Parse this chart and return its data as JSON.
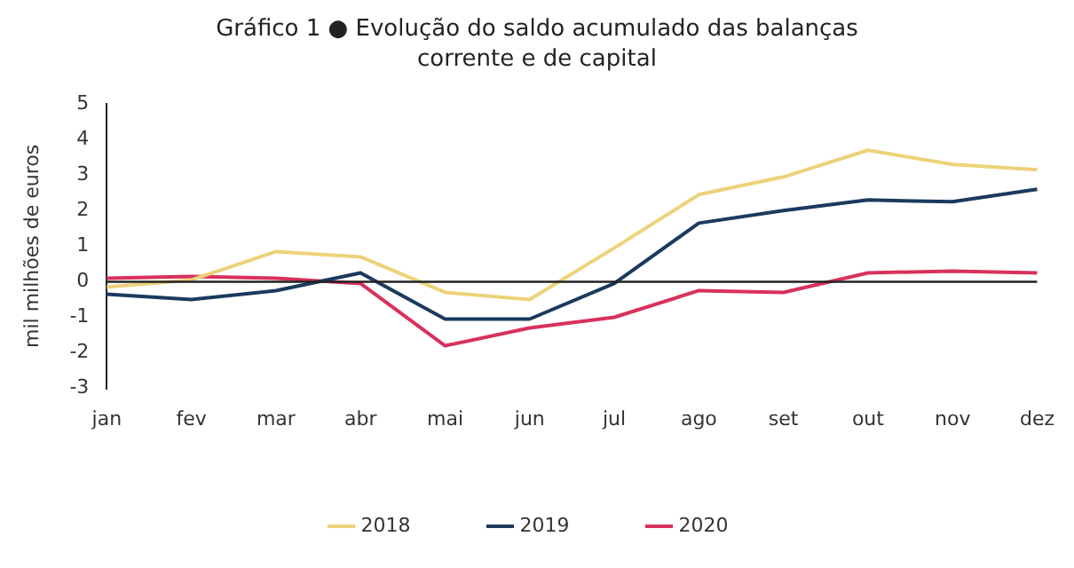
{
  "chart_data": {
    "type": "line",
    "title": "Gráfico 1 ● Evolução do saldo acumulado das balanças corrente e de capital",
    "ylabel": "mil milhões de euros",
    "categories": [
      "jan",
      "fev",
      "mar",
      "abr",
      "mai",
      "jun",
      "jul",
      "ago",
      "set",
      "out",
      "nov",
      "dez"
    ],
    "series": [
      {
        "name": "2018",
        "color": "#ecd27a",
        "values": [
          -0.15,
          0.05,
          0.85,
          0.7,
          -0.3,
          -0.5,
          0.95,
          2.45,
          2.95,
          3.7,
          3.3,
          3.15
        ]
      },
      {
        "name": "2019",
        "color": "#1b3a5e",
        "values": [
          -0.35,
          -0.5,
          -0.25,
          0.25,
          -1.05,
          -1.05,
          -0.05,
          1.65,
          2.0,
          2.3,
          2.25,
          2.6
        ]
      },
      {
        "name": "2020",
        "color": "#d8315b",
        "values": [
          0.1,
          0.15,
          0.1,
          -0.05,
          -1.8,
          -1.3,
          -1.0,
          -0.25,
          -0.3,
          0.25,
          0.3,
          0.25
        ]
      }
    ],
    "ylim": [
      -3,
      5
    ],
    "yticks": [
      -3,
      -2,
      -1,
      0,
      1,
      2,
      3,
      4,
      5
    ],
    "ref_lines": [
      {
        "axis": "y",
        "value": 0,
        "color": "#222222"
      }
    ],
    "grid": false,
    "legend": "bottom",
    "marker": "none",
    "line_style": "solid"
  }
}
